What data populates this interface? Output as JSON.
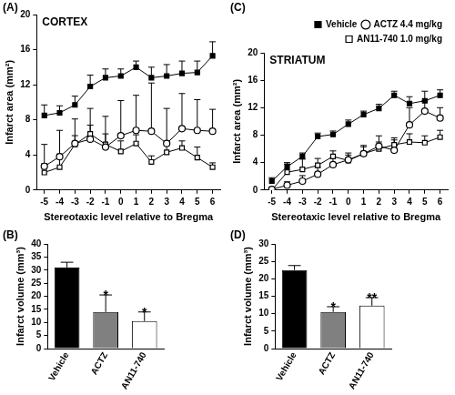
{
  "chart_data": [
    {
      "type": "line",
      "panel": "(A)",
      "title": "CORTEX",
      "x_label": "Stereotaxic level relative to Bregma",
      "y_label": "Infarct area (mm²)",
      "x": [
        -5,
        -4,
        -3,
        -2,
        -1,
        0,
        1,
        2,
        3,
        4,
        5,
        6
      ],
      "xlim": [
        -5.5,
        6.5
      ],
      "xticks": [
        -5,
        -4,
        -3,
        -2,
        -1,
        0,
        1,
        2,
        3,
        4,
        5,
        6
      ],
      "ylim": [
        0,
        20
      ],
      "yticks": [
        0,
        4,
        8,
        12,
        16,
        20
      ],
      "grid": false,
      "series": [
        {
          "name": "Vehicle",
          "color": "#000000",
          "marker": "square",
          "values": [
            8.5,
            8.8,
            9.7,
            11.8,
            12.8,
            13.0,
            14.0,
            12.8,
            13.0,
            13.3,
            13.4,
            15.3
          ],
          "errors": [
            1.2,
            0.8,
            1.0,
            1.3,
            1.0,
            0.8,
            0.7,
            1.2,
            1.3,
            1.4,
            1.3,
            1.6
          ]
        },
        {
          "name": "ACTZ 4.4 mg/kg",
          "color": "#000000",
          "marker": "open_circle",
          "values": [
            2.7,
            3.8,
            5.3,
            5.8,
            4.9,
            6.2,
            6.8,
            6.7,
            5.3,
            7.0,
            6.8,
            6.7
          ],
          "errors": [
            2.5,
            3.0,
            2.8,
            3.5,
            3.5,
            4.0,
            4.0,
            5.5,
            4.0,
            4.0,
            3.5,
            2.5
          ]
        },
        {
          "name": "AN11-740 1.0 mg/kg",
          "color": "#000000",
          "marker": "open_square",
          "values": [
            2.0,
            2.6,
            5.2,
            6.4,
            5.2,
            4.4,
            5.3,
            3.2,
            4.3,
            4.8,
            3.7,
            2.6
          ],
          "errors": [
            1.0,
            1.5,
            1.0,
            1.0,
            1.2,
            1.2,
            1.0,
            0.7,
            1.0,
            0.8,
            1.2,
            0.5
          ]
        }
      ]
    },
    {
      "type": "bar",
      "panel": "(B)",
      "y_label": "Infarct volume (mm³)",
      "categories": [
        "Vehicle",
        "ACTZ",
        "AN11-740"
      ],
      "values": [
        31.0,
        14.0,
        10.5
      ],
      "errors": [
        2.0,
        6.5,
        3.5
      ],
      "annotations": [
        null,
        "*",
        "*"
      ],
      "colors": [
        "#000000",
        "#808080",
        "#ffffff"
      ],
      "ylim": [
        0,
        40
      ],
      "yticks": [
        0,
        5,
        10,
        15,
        20,
        25,
        30,
        35,
        40
      ],
      "grid": false
    },
    {
      "type": "line",
      "panel": "(C)",
      "title": "STRIATUM",
      "x_label": "Stereotaxic level relative to Bregma",
      "y_label": "Infarct area (mm²)",
      "x": [
        -5,
        -4,
        -3,
        -2,
        -1,
        0,
        1,
        2,
        3,
        4,
        5,
        6
      ],
      "xlim": [
        -5.5,
        6.5
      ],
      "xticks": [
        -5,
        -4,
        -3,
        -2,
        -1,
        0,
        1,
        2,
        3,
        4,
        5,
        6
      ],
      "ylim": [
        0,
        20
      ],
      "yticks": [
        0,
        4,
        8,
        12,
        16,
        20
      ],
      "grid": false,
      "legend": "top-right",
      "series": [
        {
          "name": "Vehicle",
          "color": "#000000",
          "marker": "square",
          "values": [
            1.3,
            3.4,
            4.9,
            7.8,
            8.1,
            9.6,
            11.0,
            11.9,
            13.8,
            12.6,
            13.0,
            13.8
          ],
          "errors": [
            0.5,
            0.6,
            0.5,
            0.5,
            0.5,
            0.6,
            0.5,
            0.6,
            0.6,
            1.0,
            1.4,
            0.8
          ]
        },
        {
          "name": "ACTZ 4.4 mg/kg",
          "color": "#000000",
          "marker": "open_circle",
          "values": [
            0.1,
            0.7,
            1.3,
            2.3,
            3.7,
            4.4,
            5.3,
            6.4,
            5.8,
            9.5,
            11.5,
            10.5
          ],
          "errors": [
            0.3,
            0.5,
            0.8,
            1.0,
            1.0,
            1.0,
            1.2,
            1.5,
            1.5,
            2.5,
            1.5,
            1.5
          ]
        },
        {
          "name": "AN11-740 1.0 mg/kg",
          "color": "#000000",
          "marker": "open_square",
          "values": [
            0.0,
            2.6,
            3.0,
            3.6,
            4.9,
            4.3,
            5.3,
            6.0,
            6.6,
            7.0,
            6.9,
            7.7
          ],
          "errors": [
            0.3,
            1.2,
            1.5,
            1.0,
            0.8,
            0.8,
            1.0,
            1.0,
            1.0,
            1.2,
            1.0,
            1.0
          ]
        }
      ]
    },
    {
      "type": "bar",
      "panel": "(D)",
      "y_label": "Infarct volume (mm³)",
      "categories": [
        "Vehicle",
        "ACTZ",
        "AN11-740"
      ],
      "values": [
        22.5,
        10.5,
        12.3
      ],
      "errors": [
        1.3,
        1.5,
        2.3
      ],
      "annotations": [
        null,
        "*",
        "**"
      ],
      "colors": [
        "#000000",
        "#808080",
        "#ffffff"
      ],
      "ylim": [
        0,
        30
      ],
      "yticks": [
        0,
        5,
        10,
        15,
        20,
        25,
        30
      ],
      "grid": false
    }
  ]
}
